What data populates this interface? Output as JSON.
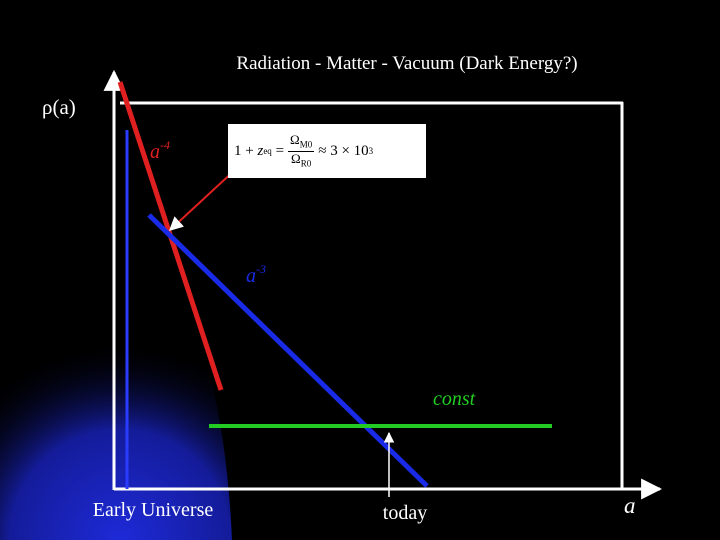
{
  "title": "Radiation - Matter - Vacuum (Dark Energy?)",
  "y_axis_label": "ρ(a)",
  "x_axis_label": "a",
  "curves": {
    "radiation_label_base": "a",
    "radiation_label_exp": "-4",
    "matter_label_base": "a",
    "matter_label_exp": "-3",
    "vacuum_label": "const"
  },
  "formula": {
    "lhs_one": "1 +",
    "z_eq_base": "z",
    "z_eq_sub": "eq",
    "eq_sign": "=",
    "num_base": "Ω",
    "num_sub": "M0",
    "den_base": "Ω",
    "den_sub": "R0",
    "approx": "≈ 3 × 10",
    "approx_exp": "3"
  },
  "annotations": {
    "early_universe": "Early Universe",
    "today": "today"
  },
  "colors": {
    "background": "#000000",
    "radiation": "#e02020",
    "matter": "#1a2be8",
    "vacuum": "#22cc22",
    "glow_inner": "#1e2ad8",
    "axes": "#ffffff"
  }
}
